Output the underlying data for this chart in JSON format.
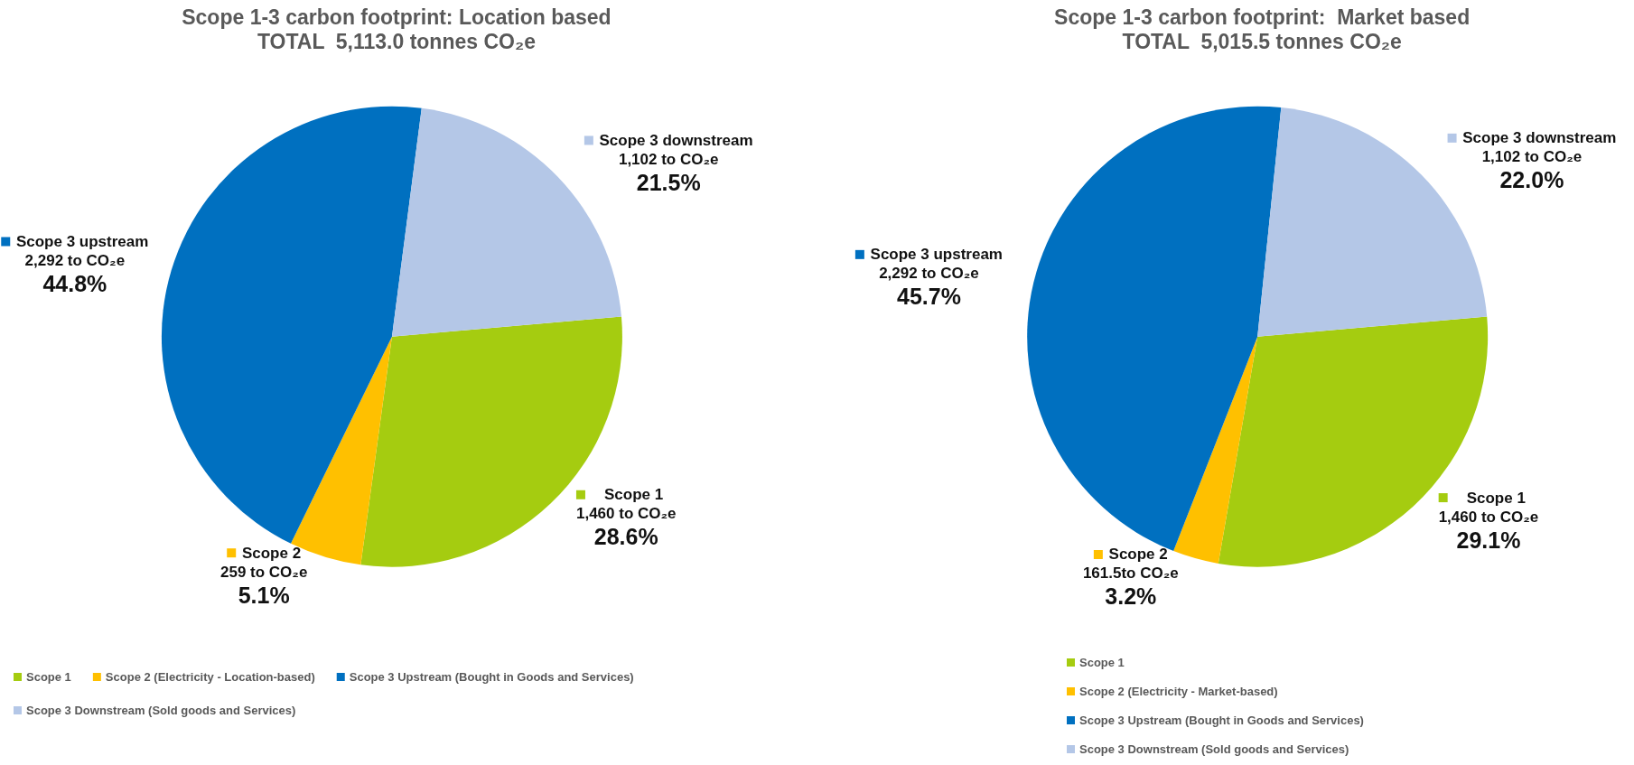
{
  "chart_data": [
    {
      "type": "pie",
      "title": "Scope 1-3 carbon footprint: Location based",
      "subtitle": "TOTAL  5,113.0 tonnes CO₂e",
      "categories": [
        "Scope 1",
        "Scope 2 (Electricity - Location-based)",
        "Scope 3 Upstream (Bought in Goods and Services)",
        "Scope 3 Downstream (Sold goods and Services)"
      ],
      "values": [
        1460,
        259,
        2292,
        1102
      ],
      "colors": [
        "#a5cc10",
        "#ffc000",
        "#0070c0",
        "#b4c7e7"
      ],
      "value_labels": [
        "Scope 1\n1,460 to CO₂e\n28.6%",
        "Scope 2\n259 to CO₂e\n5.1%",
        "Scope 3 upstream\n2,292 to CO₂e\n44.8%",
        "Scope 3 downstream\n1,102 to CO₂e\n21.5%"
      ],
      "legend": "bottom"
    },
    {
      "type": "pie",
      "title": "Scope 1-3 carbon footprint:  Market based",
      "subtitle": "TOTAL  5,015.5 tonnes CO₂e",
      "categories": [
        "Scope 1",
        "Scope 2 (Electricity - Market-based)",
        "Scope 3 Upstream (Bought in Goods and Services)",
        "Scope 3 Downstream (Sold goods and Services)"
      ],
      "values": [
        1460,
        161.5,
        2292,
        1102
      ],
      "colors": [
        "#a5cc10",
        "#ffc000",
        "#0070c0",
        "#b4c7e7"
      ],
      "value_labels": [
        "Scope 1\n1,460 to CO₂e\n29.1%",
        "Scope 2\n161.5to CO₂e\n3.2%",
        "Scope 3 upstream\n2,292 to CO₂e\n45.7%",
        "Scope 3 downstream\n1,102 to CO₂e\n22.0%"
      ],
      "legend": "bottom"
    }
  ]
}
